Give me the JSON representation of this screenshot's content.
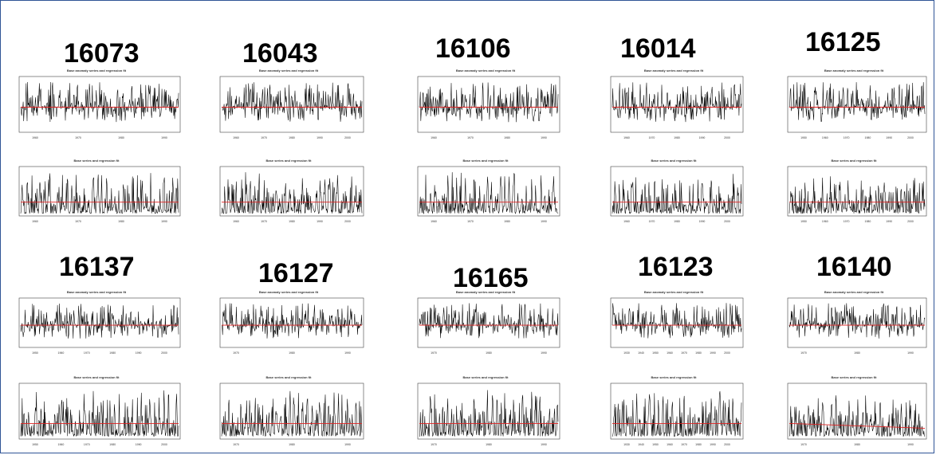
{
  "layout_note_free": true,
  "colors": {
    "series": "#000000",
    "fit": "#e02020",
    "frame": "#2f5496"
  },
  "plot_titles": {
    "anomaly": "Base anomaly series and regression fit",
    "base": "Base series and regression fit"
  },
  "stations": [
    {
      "id": "16073",
      "anomaly_ticks": [
        "1960",
        "1970",
        "1980",
        "1990"
      ],
      "base_ticks": [
        "1960",
        "1970",
        "1980",
        "1990"
      ]
    },
    {
      "id": "16043",
      "anomaly_ticks": [
        "1960",
        "1970",
        "1980",
        "1990",
        "2000"
      ],
      "base_ticks": [
        "1960",
        "1970",
        "1980",
        "1990",
        "2000"
      ]
    },
    {
      "id": "16106",
      "anomaly_ticks": [
        "1960",
        "1970",
        "1980",
        "1990"
      ],
      "base_ticks": [
        "1960",
        "1970",
        "1980",
        "1990"
      ]
    },
    {
      "id": "16014",
      "anomaly_ticks": [
        "1960",
        "1970",
        "1980",
        "1990",
        "2000"
      ],
      "base_ticks": [
        "1960",
        "1970",
        "1980",
        "1990",
        "2000"
      ]
    },
    {
      "id": "16125",
      "anomaly_ticks": [
        "1950",
        "1960",
        "1970",
        "1980",
        "1990",
        "2000"
      ],
      "base_ticks": [
        "1950",
        "1960",
        "1970",
        "1980",
        "1990",
        "2000"
      ]
    },
    {
      "id": "16137",
      "anomaly_ticks": [
        "1950",
        "1960",
        "1970",
        "1980",
        "1990",
        "2000"
      ],
      "base_ticks": [
        "1950",
        "1960",
        "1970",
        "1980",
        "1990",
        "2000"
      ]
    },
    {
      "id": "16127",
      "anomaly_ticks": [
        "1970",
        "1980",
        "1990"
      ],
      "base_ticks": [
        "1970",
        "1980",
        "1990"
      ]
    },
    {
      "id": "16165",
      "anomaly_ticks": [
        "1970",
        "1980",
        "1990"
      ],
      "base_ticks": [
        "1970",
        "1980",
        "1990"
      ]
    },
    {
      "id": "16123",
      "anomaly_ticks": [
        "1930",
        "1940",
        "1950",
        "1960",
        "1970",
        "1980",
        "1990",
        "2000"
      ],
      "base_ticks": [
        "1930",
        "1940",
        "1950",
        "1960",
        "1970",
        "1980",
        "1990",
        "2000"
      ]
    },
    {
      "id": "16140",
      "anomaly_ticks": [
        "1970",
        "1980",
        "1990"
      ],
      "base_ticks": [
        "1970",
        "1980",
        "1990"
      ]
    }
  ],
  "chart_data": {
    "type": "line",
    "title": "",
    "description_panels": "Each station shows two small plots: an anomaly series with a regression fit line (top) and a base series with a regression fit line (bottom).",
    "series": [
      {
        "name": "Base anomaly series and regression fit"
      },
      {
        "name": "Base series and regression fit"
      }
    ]
  }
}
